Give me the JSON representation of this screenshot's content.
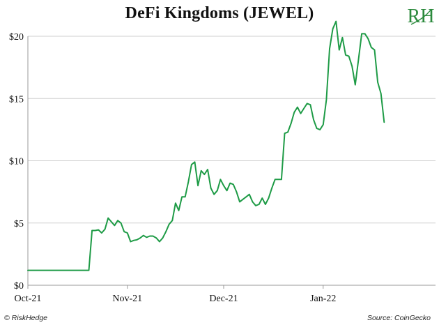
{
  "footer": {
    "copyright": "© RiskHedge",
    "source": "Source: CoinGecko"
  },
  "logo": {
    "text": "RH"
  },
  "colors": {
    "line": "#1e9b46",
    "axis": "#999999",
    "grid": "#cfcfcf",
    "logo": "#2c8a3d"
  },
  "chart_data": {
    "type": "line",
    "title": "DeFi Kingdoms (JEWEL)",
    "xlabel": "",
    "ylabel": "",
    "ylim": [
      0,
      20
    ],
    "y_ticks": [
      0,
      5,
      10,
      15,
      20
    ],
    "y_tick_labels": [
      "$0",
      "$5",
      "$10",
      "$15",
      "$20"
    ],
    "x_range": [
      "2021-10-01",
      "2022-02-05"
    ],
    "x_ticks": [
      "2021-10-01",
      "2021-11-01",
      "2021-12-01",
      "2022-01-01"
    ],
    "x_tick_labels": [
      "Oct-21",
      "Nov-21",
      "Dec-21",
      "Jan-22"
    ],
    "grid": "horizontal",
    "series": [
      {
        "values": [
          [
            "2021-10-01",
            1.2
          ],
          [
            "2021-10-20",
            1.2
          ],
          [
            "2021-10-21",
            4.4
          ],
          [
            "2021-10-22",
            4.4
          ],
          [
            "2021-10-23",
            4.45
          ],
          [
            "2021-10-24",
            4.2
          ],
          [
            "2021-10-25",
            4.5
          ],
          [
            "2021-10-26",
            5.4
          ],
          [
            "2021-10-27",
            5.1
          ],
          [
            "2021-10-28",
            4.8
          ],
          [
            "2021-10-29",
            5.2
          ],
          [
            "2021-10-30",
            5.0
          ],
          [
            "2021-10-31",
            4.3
          ],
          [
            "2021-11-01",
            4.2
          ],
          [
            "2021-11-02",
            3.5
          ],
          [
            "2021-11-03",
            3.6
          ],
          [
            "2021-11-04",
            3.65
          ],
          [
            "2021-11-05",
            3.8
          ],
          [
            "2021-11-06",
            4.0
          ],
          [
            "2021-11-07",
            3.85
          ],
          [
            "2021-11-08",
            3.95
          ],
          [
            "2021-11-09",
            3.95
          ],
          [
            "2021-11-10",
            3.8
          ],
          [
            "2021-11-11",
            3.5
          ],
          [
            "2021-11-12",
            3.8
          ],
          [
            "2021-11-13",
            4.3
          ],
          [
            "2021-11-14",
            4.9
          ],
          [
            "2021-11-15",
            5.2
          ],
          [
            "2021-11-16",
            6.6
          ],
          [
            "2021-11-17",
            6.0
          ],
          [
            "2021-11-18",
            7.1
          ],
          [
            "2021-11-19",
            7.1
          ],
          [
            "2021-11-20",
            8.3
          ],
          [
            "2021-11-21",
            9.7
          ],
          [
            "2021-11-22",
            9.9
          ],
          [
            "2021-11-23",
            8.0
          ],
          [
            "2021-11-24",
            9.2
          ],
          [
            "2021-11-25",
            8.9
          ],
          [
            "2021-11-26",
            9.3
          ],
          [
            "2021-11-27",
            7.8
          ],
          [
            "2021-11-28",
            7.3
          ],
          [
            "2021-11-29",
            7.6
          ],
          [
            "2021-11-30",
            8.5
          ],
          [
            "2021-12-01",
            8.0
          ],
          [
            "2021-12-02",
            7.6
          ],
          [
            "2021-12-03",
            8.2
          ],
          [
            "2021-12-04",
            8.1
          ],
          [
            "2021-12-05",
            7.5
          ],
          [
            "2021-12-06",
            6.7
          ],
          [
            "2021-12-07",
            6.9
          ],
          [
            "2021-12-08",
            7.1
          ],
          [
            "2021-12-09",
            7.3
          ],
          [
            "2021-12-10",
            6.7
          ],
          [
            "2021-12-11",
            6.4
          ],
          [
            "2021-12-12",
            6.5
          ],
          [
            "2021-12-13",
            7.0
          ],
          [
            "2021-12-14",
            6.5
          ],
          [
            "2021-12-15",
            7.0
          ],
          [
            "2021-12-16",
            7.8
          ],
          [
            "2021-12-17",
            8.5
          ],
          [
            "2021-12-18",
            8.5
          ],
          [
            "2021-12-19",
            8.5
          ],
          [
            "2021-12-20",
            12.2
          ],
          [
            "2021-12-21",
            12.3
          ],
          [
            "2021-12-22",
            13.0
          ],
          [
            "2021-12-23",
            13.9
          ],
          [
            "2021-12-24",
            14.3
          ],
          [
            "2021-12-25",
            13.8
          ],
          [
            "2021-12-26",
            14.2
          ],
          [
            "2021-12-27",
            14.6
          ],
          [
            "2021-12-28",
            14.5
          ],
          [
            "2021-12-29",
            13.3
          ],
          [
            "2021-12-30",
            12.6
          ],
          [
            "2021-12-31",
            12.5
          ],
          [
            "2022-01-01",
            12.9
          ],
          [
            "2022-01-02",
            14.9
          ],
          [
            "2022-01-03",
            19.0
          ],
          [
            "2022-01-04",
            20.6
          ],
          [
            "2022-01-05",
            21.2
          ],
          [
            "2022-01-06",
            18.9
          ],
          [
            "2022-01-07",
            19.9
          ],
          [
            "2022-01-08",
            18.5
          ],
          [
            "2022-01-09",
            18.4
          ],
          [
            "2022-01-10",
            17.6
          ],
          [
            "2022-01-11",
            16.1
          ],
          [
            "2022-01-12",
            18.1
          ],
          [
            "2022-01-13",
            20.2
          ],
          [
            "2022-01-14",
            20.2
          ],
          [
            "2022-01-15",
            19.8
          ],
          [
            "2022-01-16",
            19.1
          ],
          [
            "2022-01-17",
            18.9
          ],
          [
            "2022-01-18",
            16.3
          ],
          [
            "2022-01-19",
            15.4
          ],
          [
            "2022-01-20",
            13.1
          ]
        ]
      }
    ]
  }
}
